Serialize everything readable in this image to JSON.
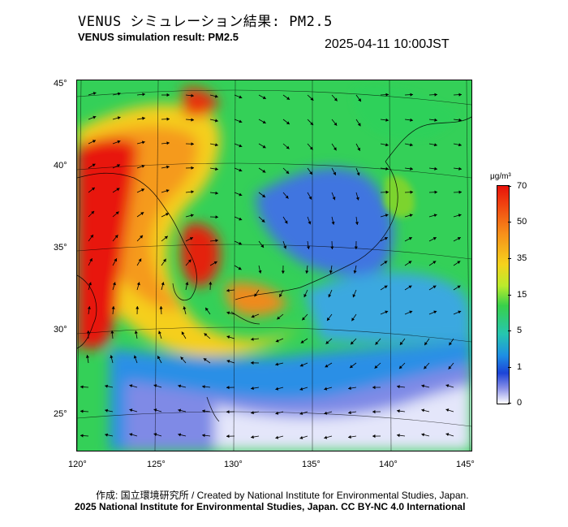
{
  "title_jp": "VENUS シミュレーション結果: PM2.5",
  "title_en": "VENUS simulation result: PM2.5",
  "timestamp": "2025-04-11 10:00JST",
  "lat_ticks": [
    "45°",
    "40°",
    "35°",
    "30°",
    "25°"
  ],
  "lon_ticks": [
    "120°",
    "125°",
    "130°",
    "135°",
    "140°",
    "145°"
  ],
  "colorbar": {
    "unit": "μg/m³",
    "labels": [
      "70",
      "50",
      "35",
      "15",
      "5",
      "1",
      "0"
    ]
  },
  "credits": {
    "line1": "作成: 国立環境研究所 / Created by National Institute for Environmental Studies, Japan.",
    "line2": "2025 National Institute for Environmental Studies, Japan. CC BY-NC 4.0 International"
  },
  "colors": {
    "high": "#e8120a",
    "mid": "#f5d21c",
    "low": "#2fd15a",
    "clean": "#1e8ee4"
  }
}
